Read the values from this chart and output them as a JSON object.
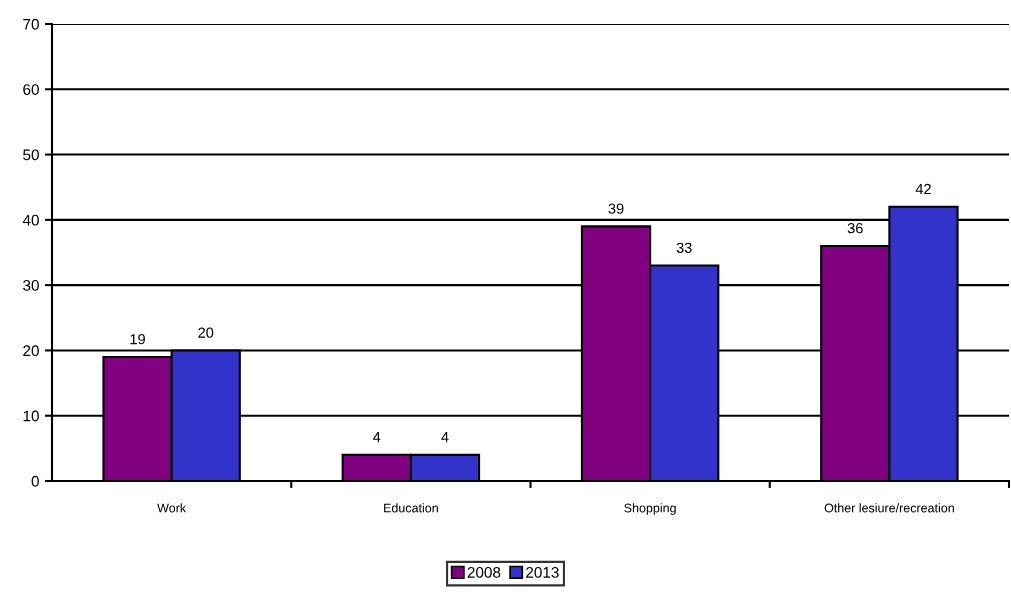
{
  "chart_data": {
    "type": "bar",
    "categories": [
      "Work",
      "Education",
      "Shopping",
      "Other lesiure/recreation"
    ],
    "series": [
      {
        "name": "2008",
        "color": "#800080",
        "values": [
          19,
          4,
          39,
          36
        ]
      },
      {
        "name": "2013",
        "color": "#3333cc",
        "values": [
          20,
          4,
          33,
          42
        ]
      }
    ],
    "ylim": [
      0,
      70
    ],
    "yticks": [
      0,
      10,
      20,
      30,
      40,
      50,
      60,
      70
    ],
    "grid": "y",
    "legend": "bottom",
    "data_labels": true
  }
}
